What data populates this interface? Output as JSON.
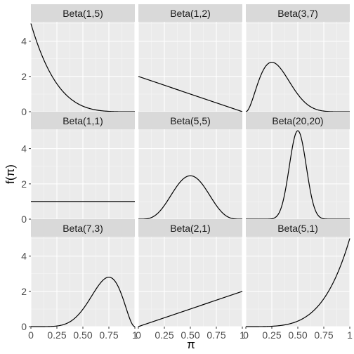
{
  "chart_data": {
    "type": "line",
    "layout": "facet-grid",
    "xlabel": "π",
    "ylabel": "f(π)",
    "xlim": [
      0,
      1
    ],
    "ylim": [
      0,
      5.1
    ],
    "x_ticks": [
      0,
      0.25,
      0.5,
      0.75,
      1
    ],
    "x_tick_labels": [
      "0",
      "0.25",
      "0.50",
      "0.75",
      "1"
    ],
    "y_ticks": [
      0,
      2,
      4
    ],
    "y_tick_labels": [
      "0",
      "2",
      "4"
    ],
    "grid": true,
    "legend": "none",
    "colors": {
      "panel_background": "#ebebeb",
      "strip_background": "#d9d9d9",
      "major_grid": "#ffffff",
      "minor_grid": "#f5f5f5",
      "line": "#000000",
      "tick_text": "#4d4d4d",
      "axis_title": "#000000",
      "strip_text": "#1a1a1a"
    },
    "panels": [
      {
        "title": "Beta(1,5)",
        "alpha": 1,
        "beta": 5
      },
      {
        "title": "Beta(1,2)",
        "alpha": 1,
        "beta": 2
      },
      {
        "title": "Beta(3,7)",
        "alpha": 3,
        "beta": 7
      },
      {
        "title": "Beta(1,1)",
        "alpha": 1,
        "beta": 1
      },
      {
        "title": "Beta(5,5)",
        "alpha": 5,
        "beta": 5
      },
      {
        "title": "Beta(20,20)",
        "alpha": 20,
        "beta": 20
      },
      {
        "title": "Beta(7,3)",
        "alpha": 7,
        "beta": 3
      },
      {
        "title": "Beta(2,1)",
        "alpha": 2,
        "beta": 1
      },
      {
        "title": "Beta(5,1)",
        "alpha": 5,
        "beta": 1
      }
    ]
  }
}
